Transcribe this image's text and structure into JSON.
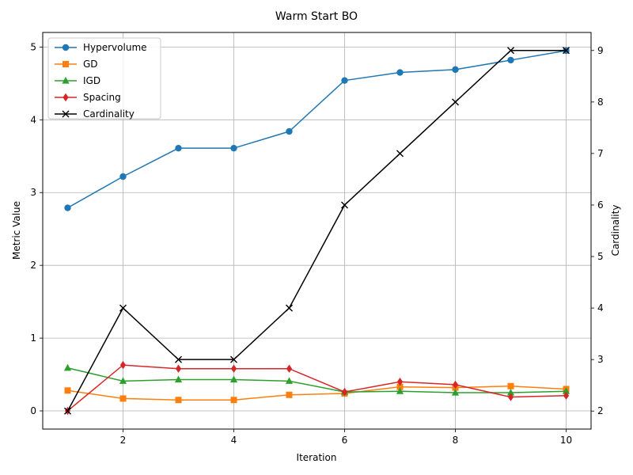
{
  "chart_data": {
    "type": "line",
    "title": "Warm Start BO",
    "xlabel": "Iteration",
    "ylabel": "Metric Value",
    "y2label": "Cardinality",
    "x": [
      1,
      2,
      3,
      4,
      5,
      6,
      7,
      8,
      9,
      10
    ],
    "xlim": [
      0.55,
      10.45
    ],
    "ylim": [
      -0.25,
      5.2
    ],
    "y2lim": [
      1.65,
      9.35
    ],
    "xticks": [
      2,
      4,
      6,
      8,
      10
    ],
    "yticks": [
      0,
      1,
      2,
      3,
      4,
      5
    ],
    "y2ticks": [
      2,
      3,
      4,
      5,
      6,
      7,
      8,
      9
    ],
    "grid": true,
    "legend_position": "top-left",
    "series": [
      {
        "name": "Hypervolume",
        "axis": "left",
        "color": "#1f77b4",
        "marker": "circle",
        "values": [
          2.79,
          3.22,
          3.61,
          3.61,
          3.84,
          4.54,
          4.65,
          4.69,
          4.82,
          4.95
        ]
      },
      {
        "name": "GD",
        "axis": "left",
        "color": "#ff7f0e",
        "marker": "square",
        "values": [
          0.28,
          0.17,
          0.15,
          0.15,
          0.22,
          0.24,
          0.33,
          0.32,
          0.34,
          0.3
        ]
      },
      {
        "name": "IGD",
        "axis": "left",
        "color": "#2ca02c",
        "marker": "triangle",
        "values": [
          0.59,
          0.41,
          0.43,
          0.43,
          0.41,
          0.26,
          0.27,
          0.25,
          0.25,
          0.27
        ]
      },
      {
        "name": "Spacing",
        "axis": "left",
        "color": "#d62728",
        "marker": "diamond",
        "values": [
          0.0,
          0.63,
          0.58,
          0.58,
          0.58,
          0.26,
          0.4,
          0.36,
          0.19,
          0.21
        ]
      },
      {
        "name": "Cardinality",
        "axis": "right",
        "color": "#000000",
        "marker": "x",
        "values": [
          2,
          4,
          3,
          3,
          4,
          6,
          7,
          8,
          9,
          9
        ]
      }
    ]
  }
}
